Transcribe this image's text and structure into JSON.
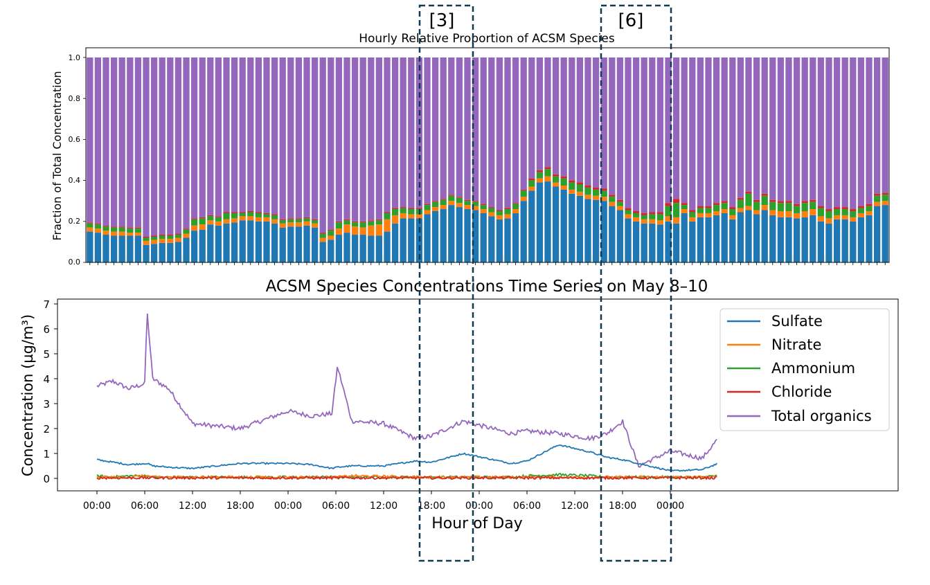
{
  "charts": [
    {
      "title": "Hourly Relative Proportion of ACSM Species",
      "ylabel": "Fraction of Total Concentration",
      "yticks": [
        "0.0",
        "0.2",
        "0.4",
        "0.6",
        "0.8",
        "1.0"
      ]
    },
    {
      "title": "ACSM Species Concentrations Time Series on May 8–10",
      "xlabel": "Hour of Day",
      "ylabel": "Concentration (µg/m³)",
      "yticks": [
        "0",
        "1",
        "2",
        "3",
        "4",
        "5",
        "6",
        "7"
      ],
      "xticks": [
        "00:00",
        "06:00",
        "12:00",
        "18:00",
        "00:00",
        "06:00",
        "12:00",
        "18:00",
        "00:00",
        "06:00",
        "12:00",
        "18:00",
        "00:00"
      ],
      "legend": [
        "Sulfate",
        "Nitrate",
        "Ammonium",
        "Chloride",
        "Total organics"
      ]
    }
  ],
  "boxes": [
    {
      "label": "[3]"
    },
    {
      "label": "[6]"
    }
  ],
  "colors": {
    "sulfate": "#1f77b4",
    "nitrate": "#ff7f0e",
    "ammonium": "#2ca02c",
    "chloride": "#d62728",
    "organics": "#9467bd",
    "box": "#0e3a52"
  },
  "chart_data": [
    {
      "type": "bar",
      "stacked": true,
      "title": "Hourly Relative Proportion of ACSM Species",
      "ylabel": "Fraction of Total Concentration",
      "ylim": [
        0,
        1.0
      ],
      "x_unit": "hour index (0 = May 8 00:00)",
      "sulfate": [
        0.15,
        0.145,
        0.135,
        0.13,
        0.13,
        0.13,
        0.13,
        0.085,
        0.09,
        0.095,
        0.095,
        0.1,
        0.12,
        0.155,
        0.16,
        0.185,
        0.18,
        0.19,
        0.195,
        0.205,
        0.205,
        0.2,
        0.2,
        0.19,
        0.17,
        0.175,
        0.175,
        0.18,
        0.17,
        0.1,
        0.11,
        0.135,
        0.145,
        0.135,
        0.135,
        0.13,
        0.13,
        0.15,
        0.19,
        0.215,
        0.215,
        0.215,
        0.235,
        0.25,
        0.26,
        0.28,
        0.27,
        0.26,
        0.255,
        0.24,
        0.225,
        0.21,
        0.215,
        0.24,
        0.3,
        0.35,
        0.39,
        0.395,
        0.37,
        0.355,
        0.335,
        0.325,
        0.31,
        0.305,
        0.3,
        0.275,
        0.255,
        0.215,
        0.2,
        0.19,
        0.19,
        0.185,
        0.2,
        0.19,
        0.24,
        0.2,
        0.22,
        0.22,
        0.23,
        0.24,
        0.21,
        0.245,
        0.255,
        0.235,
        0.255,
        0.23,
        0.22,
        0.22,
        0.215,
        0.22,
        0.23,
        0.2,
        0.19,
        0.21,
        0.21,
        0.2,
        0.22,
        0.23,
        0.275,
        0.28
      ],
      "nitrate": [
        0.02,
        0.02,
        0.02,
        0.02,
        0.02,
        0.015,
        0.015,
        0.02,
        0.02,
        0.02,
        0.02,
        0.02,
        0.02,
        0.025,
        0.025,
        0.02,
        0.02,
        0.02,
        0.02,
        0.02,
        0.02,
        0.02,
        0.02,
        0.02,
        0.02,
        0.02,
        0.02,
        0.02,
        0.02,
        0.02,
        0.02,
        0.03,
        0.04,
        0.04,
        0.035,
        0.05,
        0.055,
        0.06,
        0.04,
        0.025,
        0.02,
        0.02,
        0.02,
        0.02,
        0.02,
        0.02,
        0.02,
        0.02,
        0.02,
        0.02,
        0.02,
        0.02,
        0.02,
        0.02,
        0.02,
        0.02,
        0.02,
        0.025,
        0.02,
        0.02,
        0.02,
        0.02,
        0.02,
        0.02,
        0.02,
        0.02,
        0.02,
        0.02,
        0.02,
        0.02,
        0.02,
        0.02,
        0.025,
        0.03,
        0.02,
        0.02,
        0.02,
        0.02,
        0.02,
        0.02,
        0.02,
        0.02,
        0.02,
        0.02,
        0.025,
        0.025,
        0.03,
        0.03,
        0.025,
        0.03,
        0.03,
        0.025,
        0.025,
        0.02,
        0.02,
        0.02,
        0.02,
        0.02,
        0.02,
        0.02
      ],
      "ammonium": [
        0.02,
        0.02,
        0.02,
        0.02,
        0.02,
        0.02,
        0.02,
        0.015,
        0.015,
        0.015,
        0.015,
        0.015,
        0.02,
        0.03,
        0.03,
        0.02,
        0.02,
        0.03,
        0.025,
        0.015,
        0.02,
        0.02,
        0.015,
        0.02,
        0.015,
        0.015,
        0.015,
        0.015,
        0.015,
        0.02,
        0.025,
        0.03,
        0.02,
        0.02,
        0.025,
        0.02,
        0.02,
        0.03,
        0.03,
        0.025,
        0.025,
        0.025,
        0.025,
        0.025,
        0.025,
        0.025,
        0.025,
        0.02,
        0.02,
        0.02,
        0.02,
        0.02,
        0.025,
        0.025,
        0.03,
        0.03,
        0.03,
        0.035,
        0.03,
        0.035,
        0.035,
        0.035,
        0.035,
        0.03,
        0.03,
        0.025,
        0.02,
        0.02,
        0.02,
        0.02,
        0.025,
        0.03,
        0.05,
        0.07,
        0.02,
        0.025,
        0.025,
        0.025,
        0.03,
        0.03,
        0.03,
        0.04,
        0.06,
        0.04,
        0.045,
        0.04,
        0.04,
        0.04,
        0.035,
        0.04,
        0.035,
        0.04,
        0.035,
        0.03,
        0.03,
        0.03,
        0.025,
        0.025,
        0.03,
        0.03
      ],
      "chloride": [
        0.005,
        0.005,
        0.005,
        0.005,
        0.005,
        0.005,
        0.005,
        0.005,
        0.005,
        0.005,
        0.005,
        0.005,
        0.005,
        0.005,
        0.005,
        0.005,
        0.005,
        0.005,
        0.005,
        0.005,
        0.005,
        0.005,
        0.005,
        0.005,
        0.005,
        0.005,
        0.005,
        0.005,
        0.005,
        0.005,
        0.005,
        0.005,
        0.005,
        0.005,
        0.005,
        0.005,
        0.005,
        0.005,
        0.005,
        0.005,
        0.005,
        0.005,
        0.005,
        0.005,
        0.005,
        0.005,
        0.005,
        0.005,
        0.005,
        0.005,
        0.005,
        0.005,
        0.005,
        0.005,
        0.005,
        0.01,
        0.01,
        0.01,
        0.01,
        0.01,
        0.01,
        0.01,
        0.01,
        0.01,
        0.01,
        0.01,
        0.01,
        0.01,
        0.01,
        0.01,
        0.01,
        0.01,
        0.015,
        0.02,
        0.01,
        0.01,
        0.01,
        0.01,
        0.01,
        0.01,
        0.01,
        0.01,
        0.01,
        0.01,
        0.01,
        0.01,
        0.01,
        0.01,
        0.01,
        0.01,
        0.01,
        0.01,
        0.01,
        0.01,
        0.01,
        0.01,
        0.01,
        0.01,
        0.01,
        0.01
      ]
    },
    {
      "type": "line",
      "title": "ACSM Species Concentrations Time Series on May 8–10",
      "xlabel": "Hour of Day",
      "ylabel": "Concentration (µg/m³)",
      "ylim": [
        -0.5,
        7
      ],
      "xlim_hours": [
        -7,
        79
      ],
      "x_hours": [
        0,
        2,
        4,
        6,
        6.3,
        7,
        9,
        12,
        18,
        24,
        27,
        29.5,
        30.2,
        32,
        36,
        40,
        42,
        46,
        52,
        54,
        58,
        62,
        64,
        66,
        68,
        72,
        76,
        78
      ],
      "series": [
        {
          "name": "Sulfate",
          "y": [
            0.75,
            0.65,
            0.55,
            0.6,
            0.6,
            0.5,
            0.45,
            0.4,
            0.6,
            0.6,
            0.55,
            0.4,
            0.45,
            0.5,
            0.5,
            0.7,
            0.65,
            1.0,
            0.6,
            0.7,
            1.35,
            1.05,
            0.85,
            0.75,
            0.6,
            0.3,
            0.35,
            0.6
          ]
        },
        {
          "name": "Nitrate",
          "y": [
            0.05,
            0.05,
            0.05,
            0.1,
            0.1,
            0.05,
            0.05,
            0.05,
            0.05,
            0.05,
            0.05,
            0.05,
            0.05,
            0.1,
            0.08,
            0.05,
            0.05,
            0.05,
            0.05,
            0.05,
            0.05,
            0.05,
            0.05,
            0.05,
            0.05,
            0.05,
            0.05,
            0.05
          ]
        },
        {
          "name": "Ammonium",
          "y": [
            0.1,
            0.05,
            0.1,
            0.1,
            0.1,
            0.05,
            0.05,
            0.05,
            0.05,
            0.05,
            0.05,
            0.05,
            0.05,
            0.05,
            0.05,
            0.05,
            0.05,
            0.05,
            0.05,
            0.1,
            0.15,
            0.1,
            0.05,
            0.05,
            0.05,
            0.05,
            0.05,
            0.1
          ]
        },
        {
          "name": "Chloride",
          "y": [
            0.02,
            0.02,
            0.02,
            0.02,
            0.02,
            0.02,
            0.02,
            0.02,
            0.02,
            0.02,
            0.02,
            0.02,
            0.02,
            0.02,
            0.02,
            0.02,
            0.02,
            0.02,
            0.02,
            0.02,
            0.02,
            0.02,
            0.02,
            0.02,
            0.02,
            0.02,
            0.02,
            0.02
          ]
        },
        {
          "name": "Total organics",
          "y": [
            3.7,
            3.9,
            3.6,
            3.8,
            6.7,
            4.0,
            3.6,
            2.2,
            2.0,
            2.7,
            2.5,
            2.6,
            4.5,
            2.3,
            2.2,
            1.6,
            1.7,
            2.3,
            1.8,
            1.9,
            1.8,
            1.6,
            1.8,
            2.3,
            0.5,
            1.1,
            0.8,
            1.6
          ]
        }
      ]
    }
  ]
}
